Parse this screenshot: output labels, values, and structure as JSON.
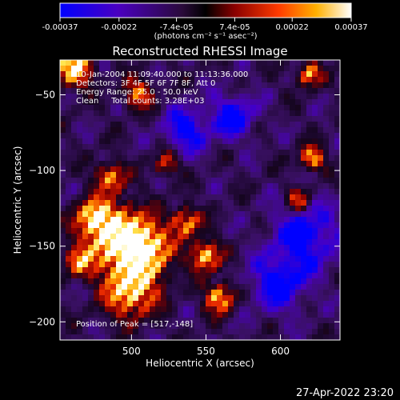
{
  "colorbar": {
    "tick_labels": [
      "-0.00037",
      "-0.00022",
      "-7.4e-05",
      "7.4e-05",
      "0.00022",
      "0.00037"
    ],
    "tick_values": [
      -0.00037,
      -0.00022,
      -7.4e-05,
      7.4e-05,
      0.00022,
      0.00037
    ],
    "range": [
      -0.00037,
      0.00037
    ],
    "units_label": "(photons cm⁻² s⁻¹ asec⁻²)",
    "colors": [
      "#0000ff",
      "#4a00c0",
      "#2a0a3a",
      "#000000",
      "#8a0000",
      "#ff3a00",
      "#ffb000",
      "#ffffff"
    ]
  },
  "chart_data": {
    "type": "heatmap",
    "title": "Reconstructed RHESSI Image",
    "xlabel": "Heliocentric X (arcsec)",
    "ylabel": "Heliocentric Y (arcsec)",
    "xlim": [
      452,
      640
    ],
    "ylim": [
      -212,
      -27
    ],
    "x_ticks": [
      500,
      550,
      600
    ],
    "y_ticks": [
      -50,
      -100,
      -150,
      -200
    ],
    "x_tick_labels": [
      "500",
      "550",
      "600"
    ],
    "y_tick_labels": [
      "−50",
      "−100",
      "−150",
      "−200"
    ],
    "peak": [
      517,
      -148
    ],
    "annotations": [
      "10-Jan-2004 11:09:40.000 to 11:13:36.000",
      "Detectors: 3F 4F 5F 6F 7F 8F, Att 0",
      "Energy Range: 25.0 - 50.0 keV",
      "Clean     Total counts: 3.28E+03"
    ],
    "peak_label": "Position of Peak = [517,-148]"
  },
  "footer": {
    "timestamp": "27-Apr-2022 23:20"
  }
}
